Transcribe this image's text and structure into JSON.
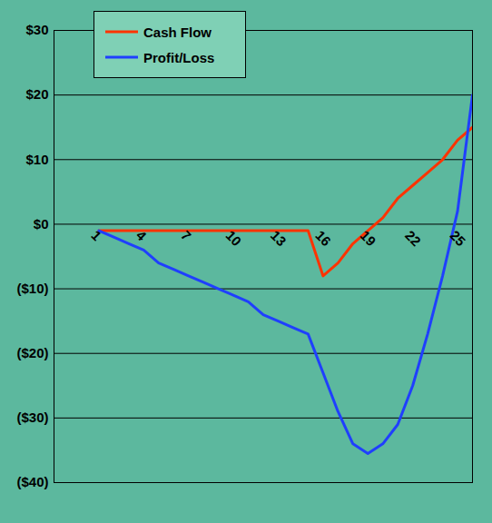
{
  "chart_data": {
    "type": "line",
    "x": [
      1,
      2,
      3,
      4,
      5,
      6,
      7,
      8,
      9,
      10,
      11,
      12,
      13,
      14,
      15,
      16,
      17,
      18,
      19,
      20,
      21,
      22,
      23,
      24,
      25,
      26
    ],
    "xlim": [
      -2,
      26
    ],
    "xticks": [
      1,
      4,
      7,
      10,
      13,
      16,
      19,
      22,
      25
    ],
    "ylim": [
      -40,
      30
    ],
    "yticks": [
      {
        "value": 30,
        "label": "$30"
      },
      {
        "value": 20,
        "label": "$20"
      },
      {
        "value": 10,
        "label": "$10"
      },
      {
        "value": 0,
        "label": "$0"
      },
      {
        "value": -10,
        "label": "($10)"
      },
      {
        "value": -20,
        "label": "($20)"
      },
      {
        "value": -30,
        "label": "($30)"
      },
      {
        "value": -40,
        "label": "($40)"
      }
    ],
    "grid": true,
    "legend": "top-left",
    "series": [
      {
        "name": "Cash Flow",
        "color": "#ff3300",
        "values": [
          -1,
          -1,
          -1,
          -1,
          -1,
          -1,
          -1,
          -1,
          -1,
          -1,
          -1,
          -1,
          -1,
          -1,
          -1,
          -8,
          -6,
          -3,
          -1,
          1,
          4,
          6,
          8,
          10,
          13,
          15
        ]
      },
      {
        "name": "Profit/Loss",
        "color": "#1f3fff",
        "values": [
          -1,
          -2,
          -3,
          -4,
          -6,
          -7,
          -8,
          -9,
          -10,
          -11,
          -12,
          -14,
          -15,
          -16,
          -17,
          -23,
          -29,
          -34,
          -35.5,
          -34,
          -31,
          -25,
          -17,
          -8,
          2,
          20
        ]
      }
    ]
  }
}
